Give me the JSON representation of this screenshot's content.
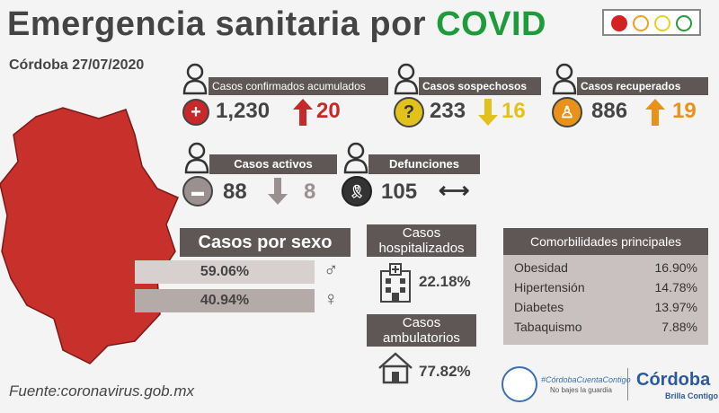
{
  "header": {
    "title_main": "Emergencia sanitaria por ",
    "title_highlight": "COVID",
    "subtitle": "Córdoba 27/07/2020",
    "traffic_light_colors": [
      "#d42222",
      "#f0a020",
      "#e8d020",
      "#2a9a3a"
    ]
  },
  "stats": {
    "confirmados": {
      "label": "Casos confirmados acumulados",
      "value": "1,230",
      "delta": "20",
      "trend": "up",
      "color": "#c8282a"
    },
    "sospechosos": {
      "label": "Casos sospechosos",
      "value": "233",
      "delta": "16",
      "trend": "down",
      "color": "#e2c21a"
    },
    "recuperados": {
      "label": "Casos recuperados",
      "value": "886",
      "delta": "19",
      "trend": "up",
      "color": "#e8921a"
    },
    "activos": {
      "label": "Casos activos",
      "value": "88",
      "delta": "8",
      "trend": "down",
      "color": "#9a9090"
    },
    "defunciones": {
      "label": "Defunciones",
      "value": "105",
      "trend": "same",
      "color": "#333333"
    }
  },
  "sexo": {
    "label": "Casos por sexo",
    "hombres": "59.06%",
    "mujeres": "40.94%"
  },
  "hospital": {
    "hosp_label_1": "Casos",
    "hosp_label_2": "hospitalizados",
    "hosp_value": "22.18%",
    "amb_label_1": "Casos",
    "amb_label_2": "ambulatorios",
    "amb_value": "77.82%"
  },
  "comorbilidades": {
    "title": "Comorbilidades principales",
    "items": [
      {
        "name": "Obesidad",
        "value": "16.90%"
      },
      {
        "name": "Hipertensión",
        "value": "14.78%"
      },
      {
        "name": "Diabetes",
        "value": "13.97%"
      },
      {
        "name": "Tabaquismo",
        "value": "7.88%"
      }
    ]
  },
  "footer": {
    "source": "Fuente:coronavirus.gob.mx",
    "hashtag": "#CórdobaCuentaContigo",
    "slogan": "No bajes la guardia",
    "brand": "Córdoba",
    "brand_sub": "Brilla Contigo"
  }
}
